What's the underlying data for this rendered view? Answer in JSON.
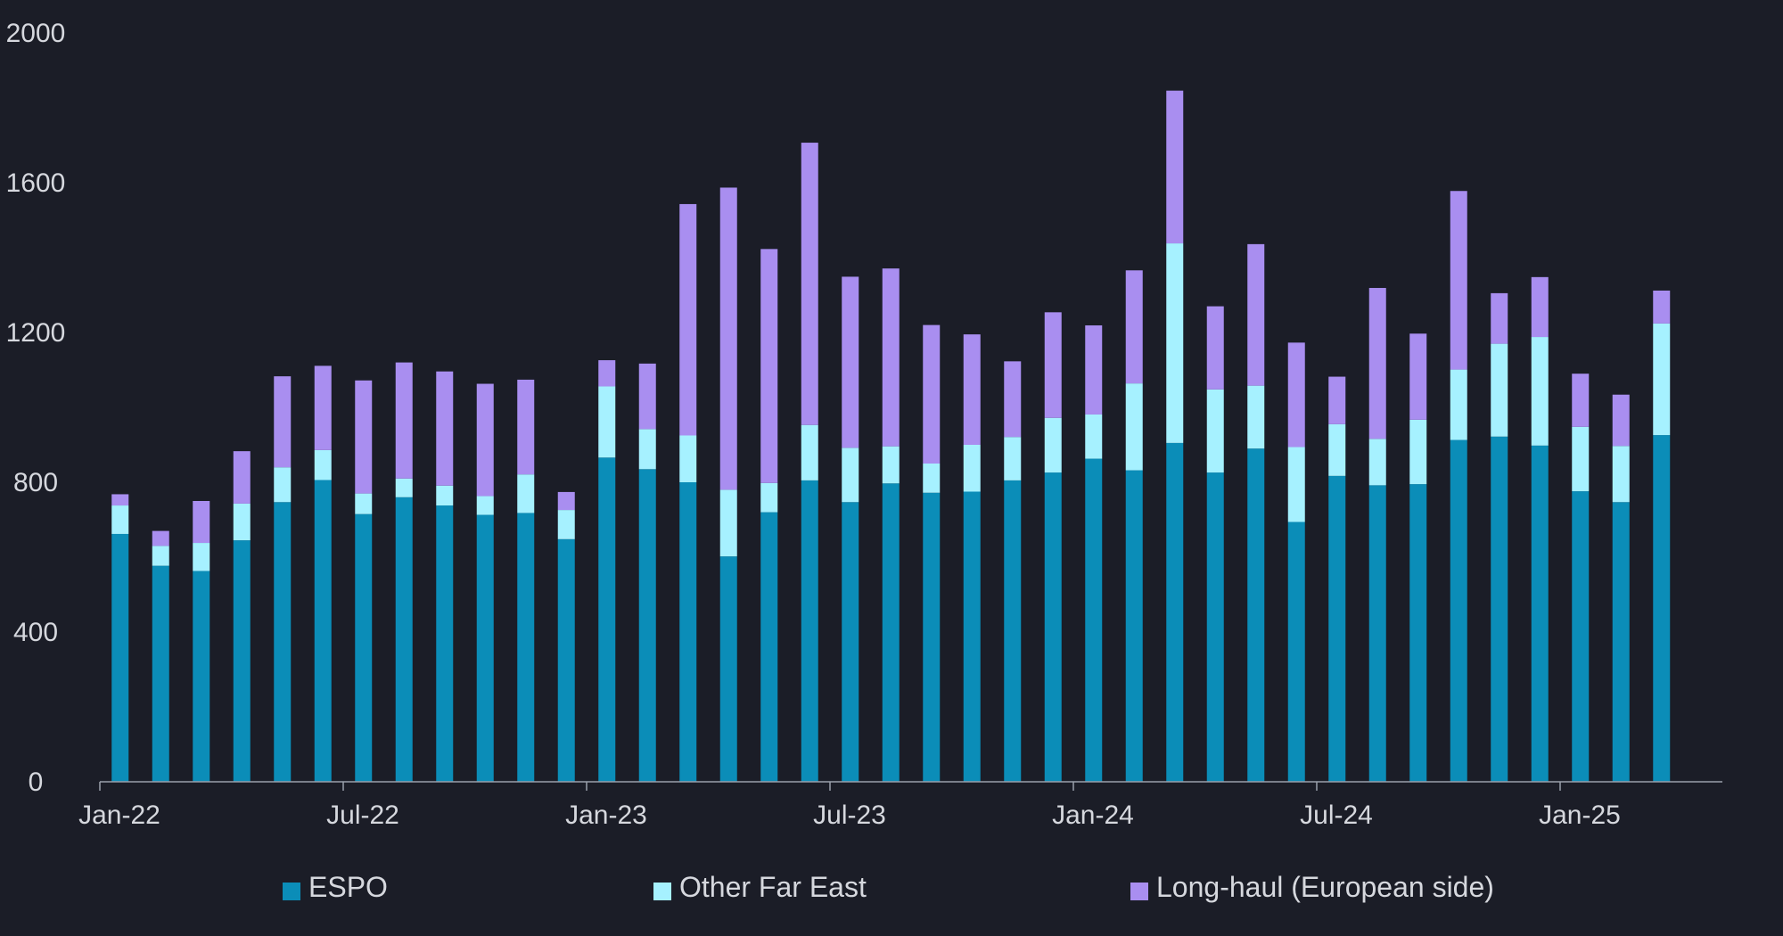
{
  "chart_data": {
    "type": "bar",
    "stacked": true,
    "title": "",
    "xlabel": "",
    "ylabel": "",
    "ylim": [
      0,
      2000
    ],
    "yticks": [
      0,
      400,
      800,
      1200,
      1600,
      2000
    ],
    "x_tick_labels": [
      "Jan-22",
      "Jul-22",
      "Jan-23",
      "Jul-23",
      "Jan-24",
      "Jul-24",
      "Jan-25"
    ],
    "x_tick_label_indices": [
      0,
      6,
      12,
      18,
      24,
      30,
      36
    ],
    "categories": [
      "Jan-22",
      "Feb-22",
      "Mar-22",
      "Apr-22",
      "May-22",
      "Jun-22",
      "Jul-22",
      "Aug-22",
      "Sep-22",
      "Oct-22",
      "Nov-22",
      "Dec-22",
      "Jan-23",
      "Feb-23",
      "Mar-23",
      "Apr-23",
      "May-23",
      "Jun-23",
      "Jul-23",
      "Aug-23",
      "Sep-23",
      "Oct-23",
      "Nov-23",
      "Dec-23",
      "Jan-24",
      "Feb-24",
      "Mar-24",
      "Apr-24",
      "May-24",
      "Jun-24",
      "Jul-24",
      "Aug-24",
      "Sep-24",
      "Oct-24",
      "Nov-24",
      "Dec-24",
      "Jan-25",
      "Feb-25",
      "Mar-25",
      "Apr-25"
    ],
    "series": [
      {
        "name": "ESPO",
        "color": "#0b8db8",
        "values": [
          662,
          577,
          563,
          645,
          747,
          806,
          715,
          760,
          738,
          713,
          718,
          648,
          866,
          835,
          800,
          602,
          720,
          805,
          747,
          797,
          772,
          775,
          805,
          826,
          863,
          832,
          905,
          826,
          890,
          694,
          817,
          792,
          795,
          913,
          922,
          898,
          776,
          747,
          926,
          0
        ]
      },
      {
        "name": "Other Far East",
        "color": "#a6f1ff",
        "values": [
          76,
          53,
          75,
          98,
          93,
          80,
          55,
          50,
          53,
          50,
          103,
          78,
          190,
          107,
          125,
          178,
          78,
          148,
          145,
          99,
          78,
          125,
          116,
          146,
          118,
          232,
          533,
          222,
          168,
          200,
          138,
          124,
          172,
          188,
          248,
          290,
          172,
          150,
          298,
          0
        ]
      },
      {
        "name": "Long-haul (European side)",
        "color": "#a98ef0",
        "values": [
          30,
          40,
          112,
          140,
          243,
          225,
          302,
          310,
          305,
          300,
          253,
          48,
          70,
          175,
          618,
          807,
          625,
          754,
          457,
          475,
          370,
          295,
          202,
          282,
          238,
          302,
          408,
          222,
          378,
          279,
          127,
          403,
          230,
          477,
          135,
          160,
          142,
          137,
          88,
          0
        ]
      }
    ],
    "legend_position": "bottom",
    "grid": false
  }
}
